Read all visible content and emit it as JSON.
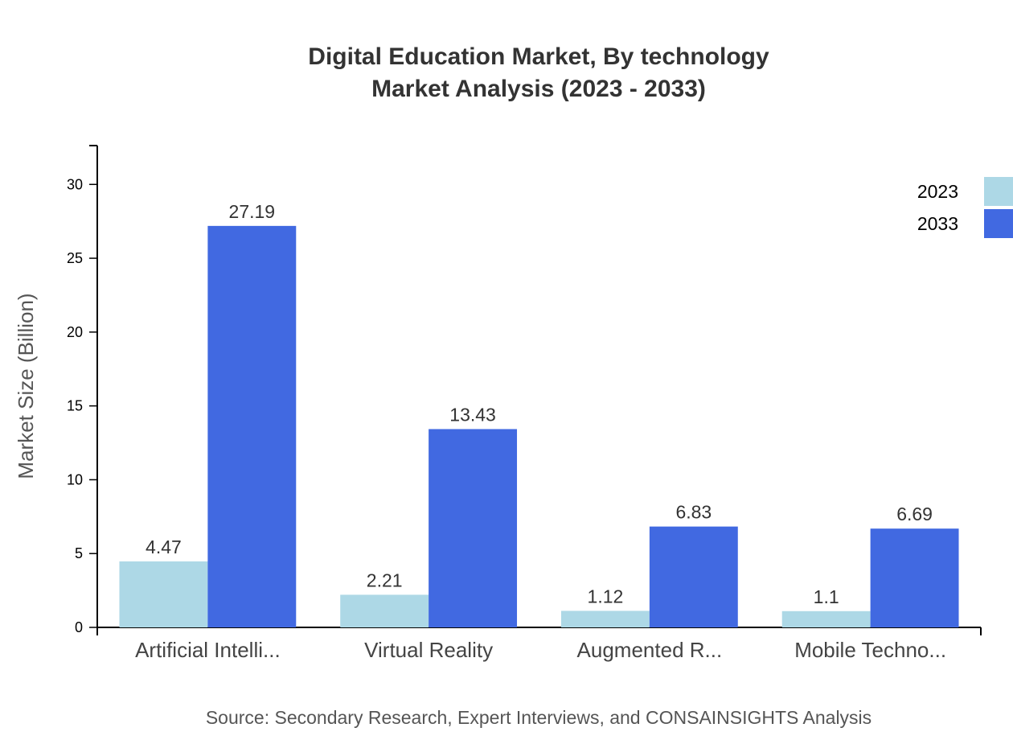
{
  "chart_data": {
    "type": "bar",
    "title": [
      "Digital Education Market, By technology",
      "Market Analysis (2023 - 2033)"
    ],
    "ylabel": "Market Size (Billion)",
    "xlabel": "",
    "categories": [
      "Artificial Intelli...",
      "Virtual Reality",
      "Augmented R...",
      "Mobile Techno..."
    ],
    "series": [
      {
        "name": "2023",
        "color": "#ADD8E6",
        "values": [
          4.47,
          2.21,
          1.12,
          1.1
        ]
      },
      {
        "name": "2033",
        "color": "#4169E1",
        "values": [
          27.19,
          13.43,
          6.83,
          6.69
        ]
      }
    ],
    "yticks": [
      0,
      5,
      10,
      15,
      20,
      25,
      30
    ],
    "ylim": [
      0,
      32.63
    ],
    "grid": false,
    "legend_position": "top-right",
    "source": "Source: Secondary Research, Expert Interviews, and CONSAINSIGHTS Analysis"
  }
}
